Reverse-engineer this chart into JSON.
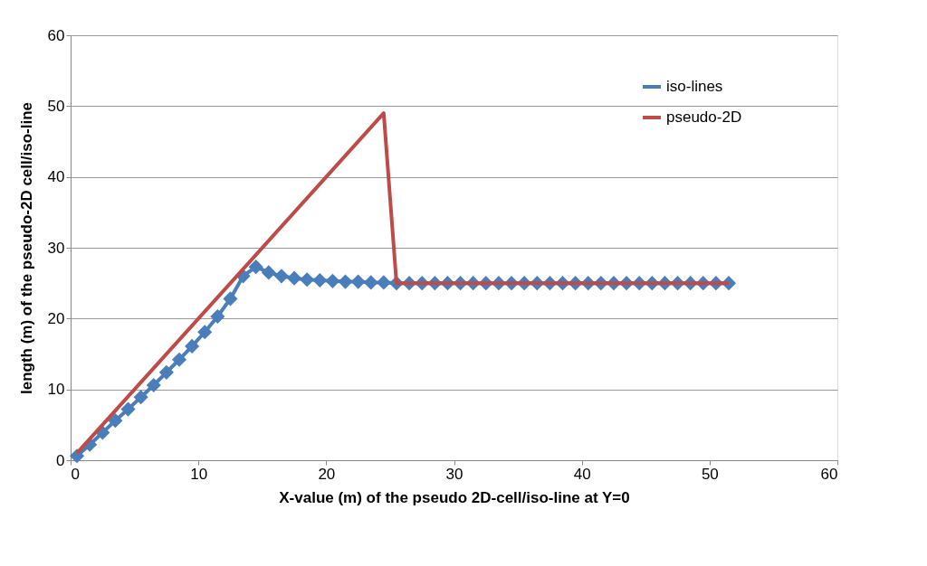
{
  "chart_data": {
    "type": "line",
    "xlabel": "X-value (m) of the pseudo 2D-cell/iso-line at Y=0",
    "ylabel": "length (m) of the pseudo-2D cell/iso-line",
    "xlim": [
      0,
      60
    ],
    "xticks": [
      0,
      10,
      20,
      30,
      40,
      50,
      60
    ],
    "ylim": [
      0,
      60
    ],
    "yticks": [
      0,
      10,
      20,
      30,
      40,
      50,
      60
    ],
    "grid": "y",
    "legend": "top right",
    "series": [
      {
        "name": "iso-lines",
        "color": "#4a7ebb",
        "marker": "diamond",
        "x": [
          0.5,
          1.5,
          2.5,
          3.5,
          4.5,
          5.5,
          6.5,
          7.5,
          8.5,
          9.5,
          10.5,
          11.5,
          12.5,
          13.5,
          14.5,
          15.5,
          16.5,
          17.5,
          18.5,
          19.5,
          20.5,
          21.5,
          22.5,
          23.5,
          24.5,
          25.5,
          26.5,
          27.5,
          28.5,
          29.5,
          30.5,
          31.5,
          32.5,
          33.5,
          34.5,
          35.5,
          36.5,
          37.5,
          38.5,
          39.5,
          40.5,
          41.5,
          42.5,
          43.5,
          44.5,
          45.5,
          46.5,
          47.5,
          48.5,
          49.5,
          50.5,
          51.5
        ],
        "values": [
          0.6,
          2.2,
          3.9,
          5.6,
          7.2,
          8.9,
          10.6,
          12.4,
          14.2,
          16.1,
          18.1,
          20.3,
          22.8,
          26.0,
          27.3,
          26.5,
          26.0,
          25.7,
          25.5,
          25.4,
          25.3,
          25.2,
          25.2,
          25.1,
          25.1,
          25.0,
          25.0,
          25.0,
          25.0,
          25.0,
          25.0,
          25.0,
          25.0,
          25.0,
          25.0,
          25.0,
          25.0,
          25.0,
          25.0,
          25.0,
          25.0,
          25.0,
          25.0,
          25.0,
          25.0,
          25.0,
          25.0,
          25.0,
          25.0,
          25.0,
          25.0,
          25.0
        ]
      },
      {
        "name": "pseudo-2D",
        "color": "#be4b48",
        "marker": "none",
        "x": [
          0.5,
          24.5,
          25.5,
          51.5
        ],
        "values": [
          1,
          49,
          25,
          25
        ]
      }
    ]
  }
}
